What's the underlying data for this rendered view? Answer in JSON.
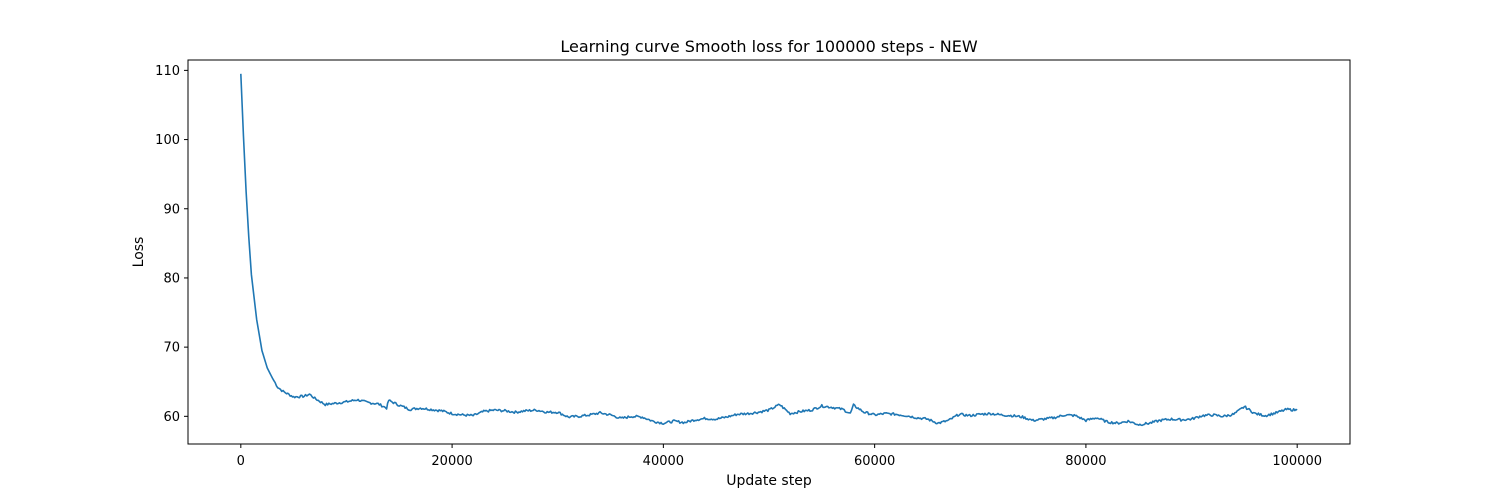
{
  "chart_data": {
    "type": "line",
    "title": "Learning curve Smooth loss for 100000 steps - NEW",
    "xlabel": "Update step",
    "ylabel": "Loss",
    "xlim": [
      -5000,
      105000
    ],
    "ylim": [
      56,
      111.5
    ],
    "x_ticks": [
      0,
      20000,
      40000,
      60000,
      80000,
      100000
    ],
    "y_ticks": [
      60,
      70,
      80,
      90,
      100,
      110
    ],
    "grid": false,
    "series": [
      {
        "color": "#1f77b4",
        "x": [
          0,
          250,
          500,
          750,
          1000,
          1500,
          2000,
          2500,
          3000,
          3500,
          4000,
          5000,
          6000,
          6500,
          7000,
          8000,
          9000,
          10000,
          11000,
          12000,
          13000,
          13800,
          14000,
          15000,
          16000,
          17000,
          18000,
          19000,
          20000,
          21000,
          22000,
          23000,
          24000,
          25000,
          26000,
          27000,
          28000,
          29000,
          30000,
          31000,
          32000,
          33000,
          34000,
          35000,
          36000,
          37000,
          38000,
          39000,
          40000,
          41000,
          42000,
          43000,
          44000,
          45000,
          46000,
          47000,
          48000,
          49000,
          50000,
          51000,
          52000,
          53000,
          54000,
          55000,
          56000,
          57000,
          57700,
          58000,
          59000,
          60000,
          61000,
          62000,
          63000,
          64000,
          65000,
          66000,
          67000,
          68000,
          69000,
          70000,
          71000,
          72000,
          73000,
          74000,
          75000,
          76000,
          77000,
          78000,
          79000,
          80000,
          81000,
          82000,
          83000,
          84000,
          85000,
          86000,
          87000,
          88000,
          89000,
          90000,
          91000,
          92000,
          93000,
          94000,
          95000,
          96000,
          97000,
          98000,
          99000,
          100000
        ],
        "y": [
          109.5,
          100.5,
          92.5,
          86.0,
          80.5,
          74.0,
          69.5,
          67.0,
          65.5,
          64.2,
          63.6,
          62.8,
          62.9,
          63.2,
          62.6,
          61.7,
          61.9,
          62.1,
          62.4,
          62.0,
          61.8,
          61.2,
          62.3,
          61.6,
          61.0,
          61.2,
          61.0,
          60.8,
          60.4,
          60.2,
          60.1,
          60.7,
          60.9,
          60.8,
          60.6,
          60.8,
          60.9,
          60.6,
          60.6,
          59.9,
          60.0,
          60.2,
          60.5,
          60.2,
          59.7,
          60.0,
          59.9,
          59.3,
          59.0,
          59.3,
          59.1,
          59.5,
          59.7,
          59.6,
          59.9,
          60.3,
          60.4,
          60.6,
          60.9,
          61.7,
          60.4,
          60.7,
          60.9,
          61.5,
          61.3,
          61.0,
          60.4,
          61.6,
          60.6,
          60.2,
          60.4,
          60.3,
          60.1,
          59.8,
          59.6,
          59.0,
          59.4,
          60.3,
          60.1,
          60.3,
          60.4,
          60.2,
          60.1,
          59.9,
          59.4,
          59.6,
          59.8,
          60.2,
          60.1,
          59.4,
          59.8,
          59.2,
          59.0,
          59.3,
          58.8,
          59.0,
          59.4,
          59.6,
          59.5,
          59.6,
          60.1,
          60.2,
          60.0,
          60.3,
          61.4,
          60.4,
          60.1,
          60.5,
          61.0,
          60.9
        ]
      }
    ]
  }
}
